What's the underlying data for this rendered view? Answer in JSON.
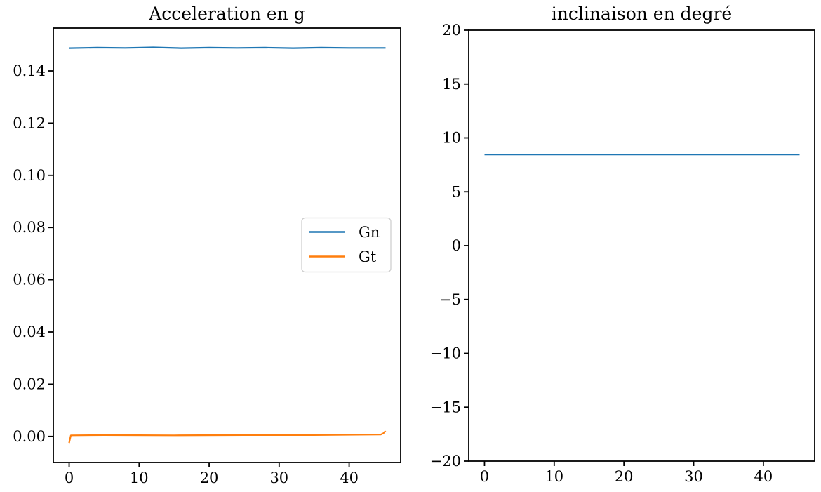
{
  "figure": {
    "background": "#ffffff",
    "spine_color": "#000000",
    "tick_color": "#000000"
  },
  "chart_data": [
    {
      "type": "line",
      "title": "Acceleration en g",
      "xlabel": "",
      "ylabel": "",
      "xlim": [
        -2.26,
        47.36
      ],
      "ylim": [
        -0.01,
        0.1564
      ],
      "grid": false,
      "xticks": {
        "values": [
          0,
          10,
          20,
          30,
          40
        ],
        "labels": [
          "0",
          "10",
          "20",
          "30",
          "40"
        ]
      },
      "yticks": {
        "values": [
          0.0,
          0.02,
          0.04,
          0.06,
          0.08,
          0.1,
          0.12,
          0.14
        ],
        "labels": [
          "0.00",
          "0.02",
          "0.04",
          "0.06",
          "0.08",
          "0.10",
          "0.12",
          "0.14"
        ]
      },
      "legend": {
        "visible": true,
        "position": "center-right",
        "entries": [
          {
            "label": "Gn",
            "color": "#1f77b4"
          },
          {
            "label": "Gt",
            "color": "#ff7f0e"
          }
        ]
      },
      "series": [
        {
          "name": "Gn",
          "color": "#1f77b4",
          "points": [
            [
              0,
              0.1487
            ],
            [
              4,
              0.1489
            ],
            [
              8,
              0.1488
            ],
            [
              12,
              0.149
            ],
            [
              16,
              0.1487
            ],
            [
              20,
              0.1489
            ],
            [
              24,
              0.1488
            ],
            [
              28,
              0.1489
            ],
            [
              32,
              0.1487
            ],
            [
              36,
              0.1489
            ],
            [
              40,
              0.1488
            ],
            [
              45.2,
              0.1488
            ]
          ]
        },
        {
          "name": "Gt",
          "color": "#ff7f0e",
          "points": [
            [
              0,
              -0.0025
            ],
            [
              0.25,
              0.0004
            ],
            [
              5,
              0.0005
            ],
            [
              15,
              0.0004
            ],
            [
              25,
              0.0005
            ],
            [
              35,
              0.0005
            ],
            [
              44.5,
              0.0007
            ],
            [
              44.9,
              0.0012
            ],
            [
              45.2,
              0.0021
            ]
          ]
        }
      ]
    },
    {
      "type": "line",
      "title": "inclinaison en degré",
      "xlabel": "",
      "ylabel": "",
      "xlim": [
        -2.26,
        47.36
      ],
      "ylim": [
        -20,
        20
      ],
      "grid": false,
      "xticks": {
        "values": [
          0,
          10,
          20,
          30,
          40
        ],
        "labels": [
          "0",
          "10",
          "20",
          "30",
          "40"
        ]
      },
      "yticks": {
        "values": [
          20,
          15,
          10,
          5,
          0,
          -5,
          -10,
          -15,
          -20
        ],
        "labels": [
          "20",
          "15",
          "10",
          "5",
          "0",
          "−5",
          "−10",
          "−15",
          "−20"
        ]
      },
      "legend": {
        "visible": false,
        "entries": []
      },
      "series": [
        {
          "name": "inclinaison",
          "color": "#1f77b4",
          "points": [
            [
              0,
              8.46
            ],
            [
              45.2,
              8.46
            ]
          ]
        }
      ]
    }
  ]
}
